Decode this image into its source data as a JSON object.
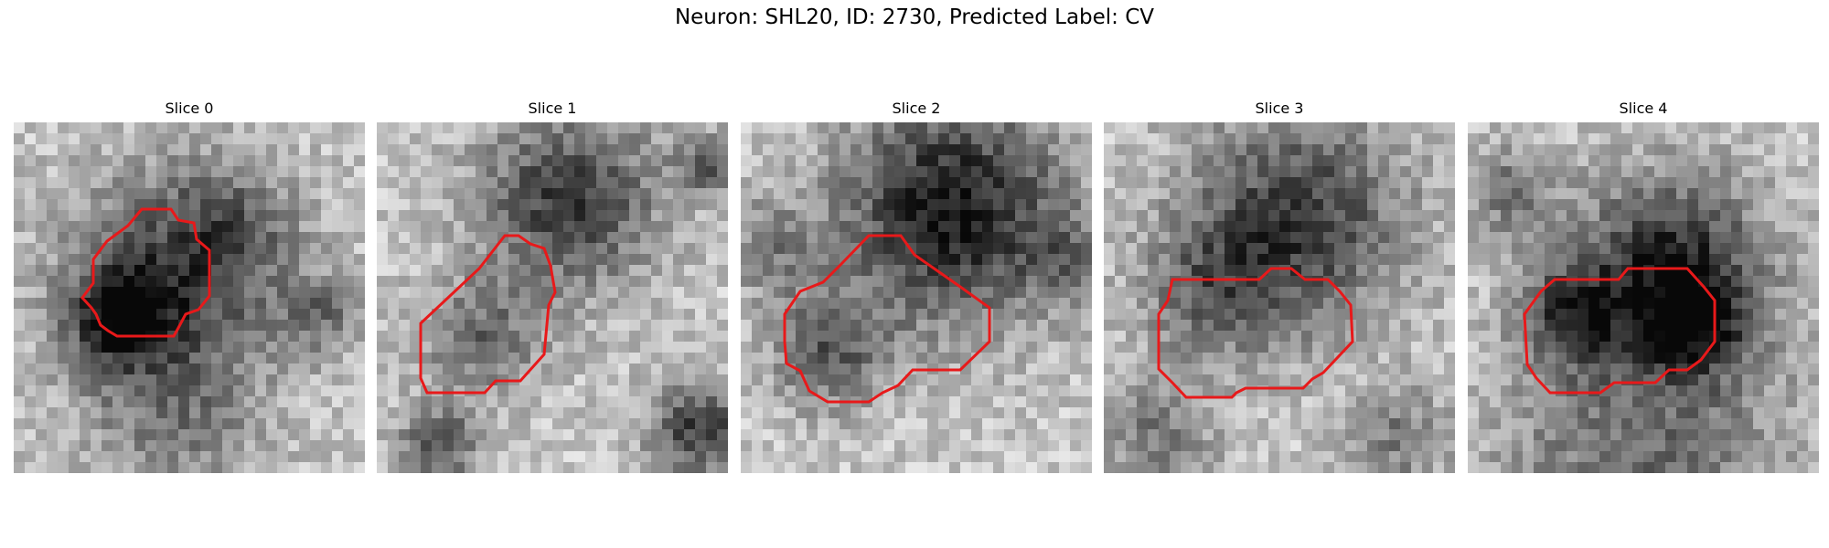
{
  "figure": {
    "title": "Neuron: SHL20, ID: 2730, Predicted Label: CV"
  },
  "panels": [
    {
      "title": "Slice 0",
      "image": "grayscale-microscopy-slice-0",
      "contour_color": "#e8191a"
    },
    {
      "title": "Slice 1",
      "image": "grayscale-microscopy-slice-1",
      "contour_color": "#e8191a"
    },
    {
      "title": "Slice 2",
      "image": "grayscale-microscopy-slice-2",
      "contour_color": "#e8191a"
    },
    {
      "title": "Slice 3",
      "image": "grayscale-microscopy-slice-3",
      "contour_color": "#e8191a"
    },
    {
      "title": "Slice 4",
      "image": "grayscale-microscopy-slice-4",
      "contour_color": "#e8191a"
    }
  ]
}
